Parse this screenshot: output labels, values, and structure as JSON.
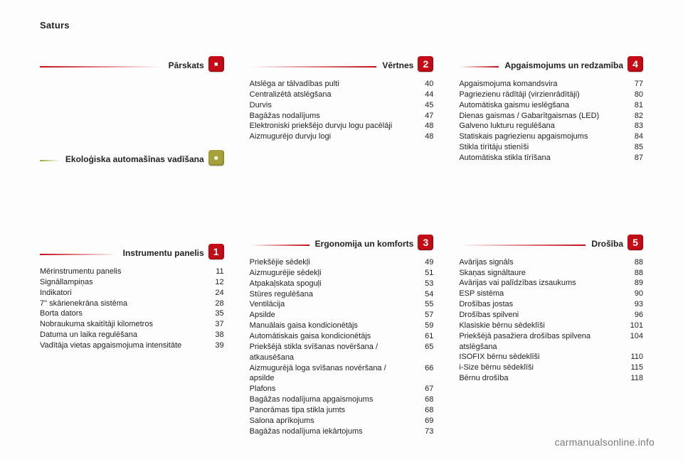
{
  "page_title": "Saturs",
  "watermark": "carmanualsonline.info",
  "gradients": {
    "red": "linear-gradient(to right, #c30c16, #ffffff)",
    "olive": "linear-gradient(to right, #a7a13a, #ffffff)",
    "red_rev": "linear-gradient(to left, #c30c16, #ffffff)"
  },
  "badge_colors": {
    "red": "#c30c16",
    "olive": "#a7a13a"
  },
  "left_sections": [
    {
      "id": "parskats",
      "title": "Pārskats",
      "rule": "red",
      "badge": {
        "glyph": "■",
        "color": "red",
        "font_size": "9px"
      },
      "items": []
    },
    {
      "id": "eko",
      "title": "Ekoloģiska automašīnas vadīšana",
      "rule": "olive",
      "badge": {
        "glyph": "■",
        "color": "olive",
        "font_size": "9px"
      },
      "items": []
    },
    {
      "id": "instr",
      "title": "Instrumentu panelis",
      "rule": "red",
      "badge": {
        "glyph": "1",
        "color": "red"
      },
      "items": [
        {
          "label": "Mērinstrumentu panelis",
          "page": "11"
        },
        {
          "label": "Signāllampiņas",
          "page": "12"
        },
        {
          "label": "Indikatori",
          "page": "24"
        },
        {
          "label": "7\" skārienekrāna sistēma",
          "page": "28"
        },
        {
          "label": "Borta dators",
          "page": "35"
        },
        {
          "label": "Nobraukuma skaitītāji kilometros",
          "page": "37"
        },
        {
          "label": "Datuma un laika regulēšana",
          "page": "38"
        },
        {
          "label": "Vadītāja vietas apgaismojuma intensitāte",
          "page": "39"
        }
      ]
    }
  ],
  "mid_sections": [
    {
      "id": "vertnes",
      "title": "Vērtnes",
      "rule": "red_rev",
      "badge": {
        "glyph": "2",
        "color": "red"
      },
      "items": [
        {
          "label": "Atslēga ar tālvadības pulti",
          "page": "40"
        },
        {
          "label": "Centralizētā atslēgšana",
          "page": "44"
        },
        {
          "label": "Durvis",
          "page": "45"
        },
        {
          "label": "Bagāžas nodalījums",
          "page": "47"
        },
        {
          "label": "Elektroniski priekšējo durvju logu pacēlāji",
          "page": "48"
        },
        {
          "label": "Aizmugurējo durvju logi",
          "page": "48"
        }
      ]
    },
    {
      "id": "ergo",
      "title": "Ergonomija un komforts",
      "rule": "red_rev",
      "badge": {
        "glyph": "3",
        "color": "red"
      },
      "items": [
        {
          "label": "Priekšējie sēdekļi",
          "page": "49"
        },
        {
          "label": "Aizmugurējie sēdekļi",
          "page": "51"
        },
        {
          "label": "Atpakaļskata spoguļi",
          "page": "53"
        },
        {
          "label": "Stūres regulēšana",
          "page": "54"
        },
        {
          "label": "Ventilācija",
          "page": "55"
        },
        {
          "label": "Apsilde",
          "page": "57"
        },
        {
          "label": "Manuālais gaisa kondicionētājs",
          "page": "59"
        },
        {
          "label": "Automātiskais gaisa kondicionētājs",
          "page": "61"
        },
        {
          "label": "Priekšējā stikla svīšanas novēršana / atkausēšana",
          "page": "65"
        },
        {
          "label": "Aizmugurējā loga svīšanas novēršana / apsilde",
          "page": "66"
        },
        {
          "label": "Plafons",
          "page": "67"
        },
        {
          "label": "Bagāžas nodalījuma apgaismojums",
          "page": "68"
        },
        {
          "label": "Panorāmas tipa stikla jumts",
          "page": "68"
        },
        {
          "label": "Salona aprīkojums",
          "page": "69"
        },
        {
          "label": "Bagāžas nodalījuma iekārtojums",
          "page": "73"
        }
      ]
    }
  ],
  "right_sections": [
    {
      "id": "apg",
      "title": "Apgaismojums un redzamība",
      "rule": "red_rev",
      "badge": {
        "glyph": "4",
        "color": "red"
      },
      "items": [
        {
          "label": "Apgaismojuma komandsvira",
          "page": "77"
        },
        {
          "label": "Pagriezienu rādītāji (virzienrādītāji)",
          "page": "80"
        },
        {
          "label": "Automātiska gaismu ieslēgšana",
          "page": "81"
        },
        {
          "label": "Dienas gaismas / Gabarītgaismas (LED)",
          "page": "82"
        },
        {
          "label": "Galveno lukturu regulēšana",
          "page": "83"
        },
        {
          "label": "Statiskais pagriezienu apgaismojums",
          "page": "84"
        },
        {
          "label": "Stikla tīrītāju stienīši",
          "page": "85"
        },
        {
          "label": "Automātiska stikla tīrīšana",
          "page": "87"
        }
      ]
    },
    {
      "id": "dros",
      "title": "Drošība",
      "rule": "red_rev",
      "badge": {
        "glyph": "5",
        "color": "red"
      },
      "items": [
        {
          "label": "Avārijas signāls",
          "page": "88"
        },
        {
          "label": "Skaņas signāltaure",
          "page": "88"
        },
        {
          "label": "Avārijas vai palīdzības izsaukums",
          "page": "89"
        },
        {
          "label": "ESP sistēma",
          "page": "90"
        },
        {
          "label": "Drošības jostas",
          "page": "93"
        },
        {
          "label": "Drošības spilveni",
          "page": "96"
        },
        {
          "label": "Klasiskie bērnu sēdeklīši",
          "page": "101"
        },
        {
          "label": "Priekšējā pasažiera drošības spilvena atslēgšana",
          "page": "104"
        },
        {
          "label": "ISOFIX bērnu sēdeklīši",
          "page": "110"
        },
        {
          "label": "i-Size bērnu sēdeklīši",
          "page": "115"
        },
        {
          "label": "Bērnu drošība",
          "page": "118"
        }
      ]
    }
  ]
}
